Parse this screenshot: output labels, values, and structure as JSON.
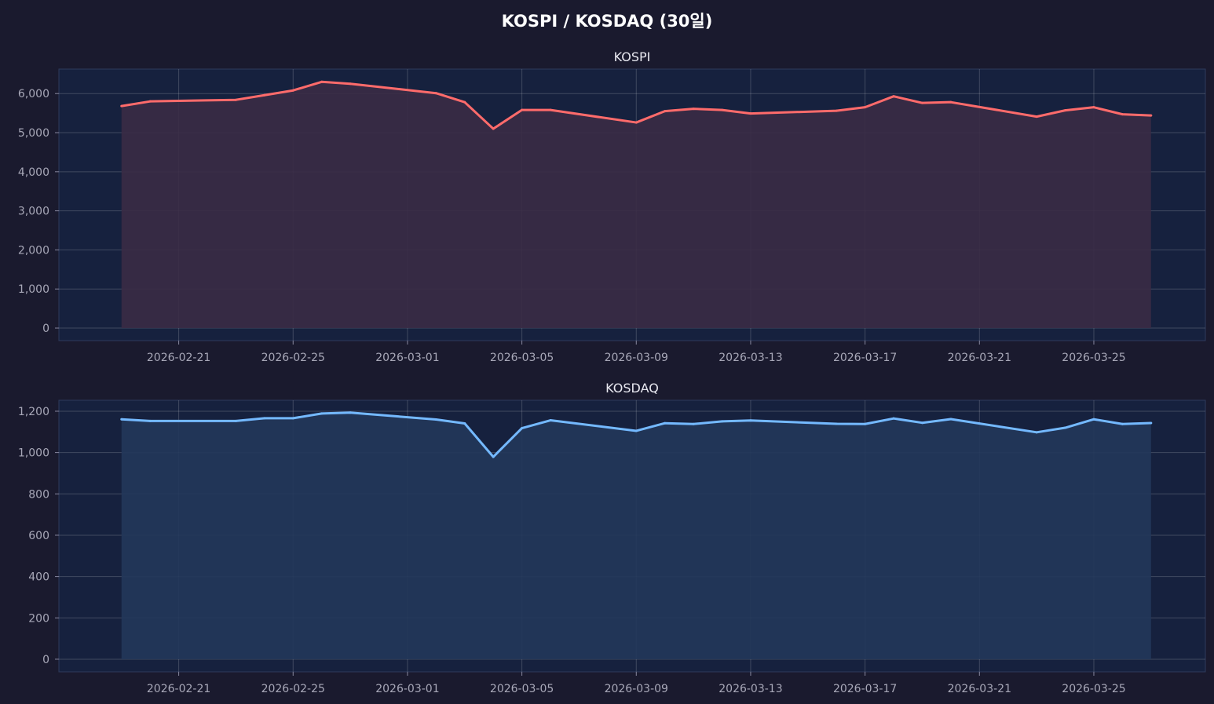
{
  "chart_data": [
    {
      "type": "area",
      "suptitle": "KOSPI / KOSDAQ (30일)",
      "title": "KOSPI",
      "color": "#ff6b6b",
      "fill": "#3a2b45",
      "x": [
        "2026-02-19",
        "2026-02-20",
        "2026-02-23",
        "2026-02-24",
        "2026-02-25",
        "2026-02-26",
        "2026-02-27",
        "2026-03-02",
        "2026-03-03",
        "2026-03-04",
        "2026-03-05",
        "2026-03-06",
        "2026-03-09",
        "2026-03-10",
        "2026-03-11",
        "2026-03-12",
        "2026-03-13",
        "2026-03-16",
        "2026-03-17",
        "2026-03-18",
        "2026-03-19",
        "2026-03-20",
        "2026-03-23",
        "2026-03-24",
        "2026-03-25",
        "2026-03-26",
        "2026-03-27"
      ],
      "values": [
        5680,
        5800,
        5840,
        5960,
        6080,
        6300,
        6250,
        6010,
        5780,
        5100,
        5580,
        5580,
        5260,
        5550,
        5610,
        5580,
        5490,
        5560,
        5650,
        5930,
        5760,
        5780,
        5410,
        5570,
        5650,
        5470,
        5440
      ],
      "yticks": [
        0,
        1000,
        2000,
        3000,
        4000,
        5000,
        6000
      ],
      "ytick_labels": [
        "0",
        "1,000",
        "2,000",
        "3,000",
        "4,000",
        "5,000",
        "6,000"
      ],
      "ylim": [
        -321,
        6627
      ],
      "xticks": [
        "2026-02-21",
        "2026-02-25",
        "2026-03-01",
        "2026-03-05",
        "2026-03-09",
        "2026-03-13",
        "2026-03-17",
        "2026-03-21",
        "2026-03-25"
      ],
      "xlim": [
        "2026-02-17",
        "2026-03-28"
      ],
      "grid": true
    },
    {
      "type": "area",
      "title": "KOSDAQ",
      "color": "#74b9ff",
      "fill": "#22375a",
      "x": [
        "2026-02-19",
        "2026-02-20",
        "2026-02-23",
        "2026-02-24",
        "2026-02-25",
        "2026-02-26",
        "2026-02-27",
        "2026-03-02",
        "2026-03-03",
        "2026-03-04",
        "2026-03-05",
        "2026-03-06",
        "2026-03-09",
        "2026-03-10",
        "2026-03-11",
        "2026-03-12",
        "2026-03-13",
        "2026-03-16",
        "2026-03-17",
        "2026-03-18",
        "2026-03-19",
        "2026-03-20",
        "2026-03-23",
        "2026-03-24",
        "2026-03-25",
        "2026-03-26",
        "2026-03-27"
      ],
      "values": [
        1161,
        1153,
        1153,
        1166,
        1166,
        1189,
        1193,
        1160,
        1141,
        979,
        1118,
        1156,
        1105,
        1142,
        1138,
        1151,
        1155,
        1139,
        1138,
        1165,
        1144,
        1162,
        1098,
        1120,
        1161,
        1138,
        1143
      ],
      "yticks": [
        0,
        200,
        400,
        600,
        800,
        1000,
        1200
      ],
      "ytick_labels": [
        "0",
        "200",
        "400",
        "600",
        "800",
        "1,000",
        "1,200"
      ],
      "ylim": [
        -61,
        1253
      ],
      "xticks": [
        "2026-02-21",
        "2026-02-25",
        "2026-03-01",
        "2026-03-05",
        "2026-03-09",
        "2026-03-13",
        "2026-03-17",
        "2026-03-21",
        "2026-03-25"
      ],
      "xlim": [
        "2026-02-17",
        "2026-03-28"
      ],
      "grid": true
    }
  ]
}
